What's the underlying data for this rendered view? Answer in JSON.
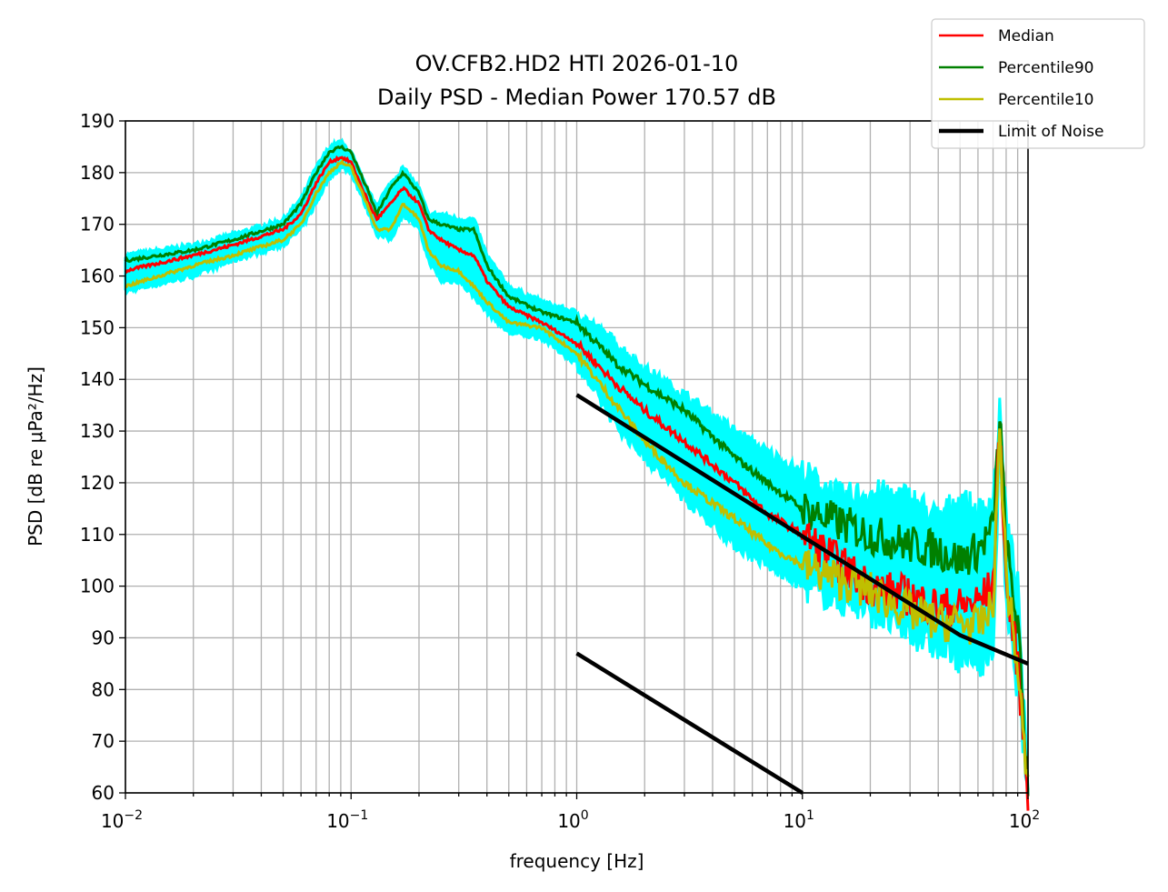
{
  "chart_data": {
    "type": "line",
    "title": "OV.CFB2.HD2 HTI 2026-01-10",
    "subtitle": "Daily PSD - Median Power 170.57 dB",
    "xlabel": "frequency [Hz]",
    "ylabel": "PSD [dB re μPa²/Hz]",
    "xscale": "log",
    "xlim": [
      0.01,
      100
    ],
    "ylim": [
      60,
      190
    ],
    "grid": true,
    "legend_position": "top-right (outside)",
    "x_tick_labels": [
      {
        "value": 0.01,
        "base": "10",
        "exp": "−2"
      },
      {
        "value": 0.1,
        "base": "10",
        "exp": "−1"
      },
      {
        "value": 1,
        "base": "10",
        "exp": "0"
      },
      {
        "value": 10,
        "base": "10",
        "exp": "1"
      },
      {
        "value": 100,
        "base": "10",
        "exp": "2"
      }
    ],
    "y_ticks": [
      60,
      70,
      80,
      90,
      100,
      110,
      120,
      130,
      140,
      150,
      160,
      170,
      180,
      190
    ],
    "y_tick_labels": [
      "60",
      "70",
      "80",
      "90",
      "100",
      "110",
      "120",
      "130",
      "140",
      "150",
      "160",
      "170",
      "180",
      "190"
    ],
    "envelope": {
      "name": "Min/Max range",
      "color": "#00ffff",
      "x": [
        0.01,
        0.02,
        0.03,
        0.05,
        0.06,
        0.07,
        0.08,
        0.09,
        0.1,
        0.12,
        0.13,
        0.15,
        0.17,
        0.2,
        0.22,
        0.25,
        0.3,
        0.35,
        0.4,
        0.5,
        0.7,
        1,
        1.5,
        2,
        3,
        5,
        7,
        10,
        15,
        20,
        30,
        40,
        50,
        60,
        70,
        75,
        80,
        90,
        100
      ],
      "upper": [
        164,
        166,
        168,
        171,
        175,
        181,
        185,
        186,
        184,
        176,
        174,
        178,
        181,
        177,
        172,
        172,
        171,
        171,
        164,
        158,
        155,
        153,
        147,
        142,
        137,
        130,
        126,
        122,
        117,
        118,
        117,
        113,
        117,
        114,
        117,
        134,
        113,
        100,
        60
      ],
      "lower": [
        157,
        160,
        163,
        166,
        169,
        174,
        179,
        181,
        180,
        172,
        168,
        167,
        172,
        169,
        163,
        159,
        159,
        156,
        153,
        149,
        148,
        143,
        131,
        125,
        117,
        108,
        104,
        100,
        97,
        95,
        91,
        88,
        86,
        85,
        87,
        128,
        95,
        80,
        60
      ]
    },
    "series": [
      {
        "name": "Median",
        "color": "#ff0000",
        "x": [
          0.01,
          0.02,
          0.03,
          0.05,
          0.06,
          0.07,
          0.08,
          0.09,
          0.1,
          0.12,
          0.13,
          0.15,
          0.17,
          0.2,
          0.22,
          0.25,
          0.3,
          0.35,
          0.4,
          0.5,
          0.7,
          1,
          1.5,
          2,
          3,
          5,
          7,
          10,
          15,
          20,
          30,
          40,
          50,
          60,
          70,
          75,
          80,
          90,
          100
        ],
        "values": [
          161,
          164,
          166,
          169,
          172,
          178,
          182,
          183,
          182,
          174,
          171,
          174,
          177,
          174,
          169,
          167,
          165,
          164,
          159,
          154,
          151,
          147,
          139,
          134,
          128,
          120,
          114,
          110,
          104,
          100,
          98,
          96,
          96,
          97,
          100,
          131,
          100,
          85,
          60
        ]
      },
      {
        "name": "Percentile90",
        "color": "#008000",
        "x": [
          0.01,
          0.02,
          0.03,
          0.05,
          0.06,
          0.07,
          0.08,
          0.09,
          0.1,
          0.12,
          0.13,
          0.15,
          0.17,
          0.2,
          0.22,
          0.25,
          0.3,
          0.35,
          0.4,
          0.5,
          0.7,
          1,
          1.5,
          2,
          3,
          5,
          7,
          10,
          15,
          20,
          30,
          40,
          50,
          60,
          70,
          75,
          80,
          90,
          100
        ],
        "values": [
          163,
          165,
          167,
          170,
          174,
          180,
          184,
          185,
          184,
          176,
          172,
          177,
          180,
          176,
          171,
          170,
          169,
          169,
          162,
          156,
          153,
          151,
          143,
          139,
          134,
          125,
          120,
          115,
          112,
          110,
          108,
          107,
          105,
          107,
          111,
          133,
          108,
          92,
          62
        ]
      },
      {
        "name": "Percentile10",
        "color": "#bfbf00",
        "x": [
          0.01,
          0.02,
          0.03,
          0.05,
          0.06,
          0.07,
          0.08,
          0.09,
          0.1,
          0.12,
          0.13,
          0.15,
          0.17,
          0.2,
          0.22,
          0.25,
          0.3,
          0.35,
          0.4,
          0.5,
          0.7,
          1,
          1.5,
          2,
          3,
          5,
          7,
          10,
          15,
          20,
          30,
          40,
          50,
          60,
          70,
          75,
          80,
          90,
          100
        ],
        "values": [
          158,
          162,
          164,
          167,
          170,
          176,
          180,
          182,
          181,
          173,
          169,
          169,
          174,
          171,
          165,
          162,
          161,
          158,
          155,
          151,
          150,
          145,
          135,
          128,
          120,
          113,
          108,
          104,
          101,
          99,
          95,
          93,
          93,
          92,
          96,
          131,
          102,
          84,
          60
        ]
      },
      {
        "name": "Limit of Noise",
        "color": "#000000",
        "segments": [
          {
            "x": [
              1,
              50,
              100
            ],
            "values": [
              137,
              90.5,
              85
            ]
          },
          {
            "x": [
              1,
              10
            ],
            "values": [
              87,
              60
            ]
          }
        ]
      }
    ]
  }
}
